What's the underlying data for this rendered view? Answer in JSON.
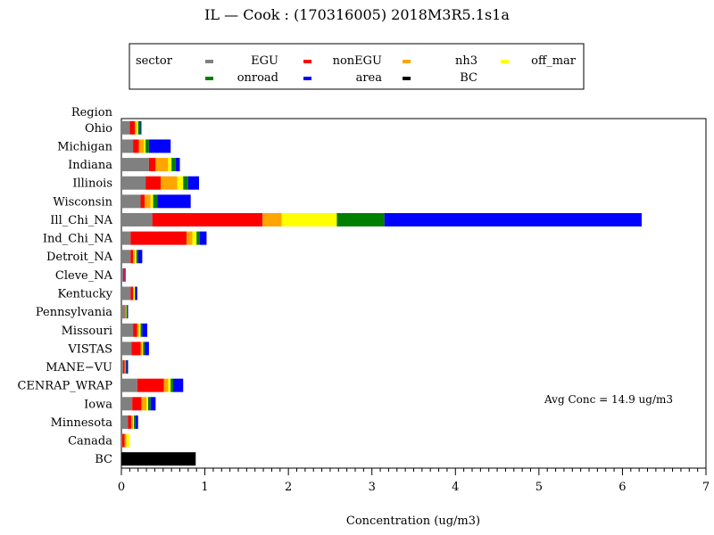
{
  "chart_data": {
    "type": "bar",
    "orientation": "horizontal",
    "stacked": true,
    "title": "IL  —  Cook  :  (170316005)  2018M3R5.1s1a",
    "xlabel": "Concentration  (ug/m3)",
    "ylabel": "Region",
    "xlim": [
      0,
      7
    ],
    "xticks": [
      "0",
      "1",
      "2",
      "3",
      "4",
      "5",
      "6",
      "7"
    ],
    "grid": false,
    "legend_position": "top",
    "legend_title": "sector",
    "annotation": "Avg Conc  =  14.9  ug/m3",
    "categories": [
      "Ohio",
      "Michigan",
      "Indiana",
      "Illinois",
      "Wisconsin",
      "Ill_Chi_NA",
      "Ind_Chi_NA",
      "Detroit_NA",
      "Cleve_NA",
      "Kentucky",
      "Pennsylvania",
      "Missouri",
      "VISTAS",
      "MANE−VU",
      "CENRAP_WRAP",
      "Iowa",
      "Minnesota",
      "Canada",
      "BC"
    ],
    "series": [
      {
        "name": "EGU",
        "color": "#808080",
        "values": [
          0.1,
          0.14,
          0.33,
          0.29,
          0.23,
          0.37,
          0.11,
          0.11,
          0.02,
          0.11,
          0.04,
          0.14,
          0.12,
          0.02,
          0.19,
          0.13,
          0.08,
          0.01,
          0.0
        ]
      },
      {
        "name": "nonEGU",
        "color": "#ff0000",
        "values": [
          0.06,
          0.07,
          0.08,
          0.18,
          0.05,
          1.32,
          0.67,
          0.03,
          0.02,
          0.03,
          0.01,
          0.05,
          0.11,
          0.02,
          0.32,
          0.11,
          0.04,
          0.03,
          0.0
        ]
      },
      {
        "name": "nh3",
        "color": "#ffa500",
        "values": [
          0.02,
          0.06,
          0.15,
          0.2,
          0.07,
          0.23,
          0.07,
          0.02,
          0.0,
          0.01,
          0.0,
          0.02,
          0.02,
          0.01,
          0.05,
          0.06,
          0.02,
          0.02,
          0.0
        ]
      },
      {
        "name": "off_mar",
        "color": "#ffff00",
        "values": [
          0.02,
          0.02,
          0.04,
          0.07,
          0.03,
          0.66,
          0.05,
          0.02,
          0.0,
          0.01,
          0.01,
          0.02,
          0.01,
          0.0,
          0.03,
          0.02,
          0.01,
          0.04,
          0.0
        ]
      },
      {
        "name": "onroad",
        "color": "#008000",
        "values": [
          0.03,
          0.04,
          0.05,
          0.06,
          0.05,
          0.57,
          0.04,
          0.02,
          0.0,
          0.01,
          0.01,
          0.02,
          0.02,
          0.01,
          0.03,
          0.03,
          0.02,
          0.0,
          0.0
        ]
      },
      {
        "name": "area",
        "color": "#0000ff",
        "values": [
          0.01,
          0.26,
          0.05,
          0.13,
          0.4,
          3.08,
          0.08,
          0.05,
          0.01,
          0.02,
          0.01,
          0.06,
          0.05,
          0.02,
          0.12,
          0.06,
          0.03,
          0.0,
          0.0
        ]
      },
      {
        "name": "BC",
        "color": "#000000",
        "values": [
          0.0,
          0.0,
          0.0,
          0.0,
          0.0,
          0.0,
          0.0,
          0.0,
          0.0,
          0.0,
          0.0,
          0.0,
          0.0,
          0.0,
          0.0,
          0.0,
          0.0,
          0.0,
          0.89
        ]
      }
    ]
  }
}
